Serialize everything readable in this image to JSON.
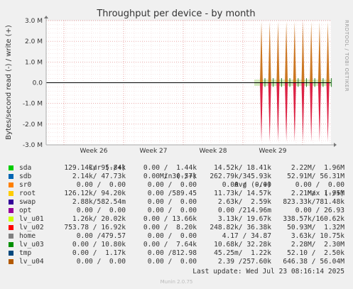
{
  "chart_data": {
    "type": "line",
    "title": "Throughput per device - by month",
    "ylabel": "Bytes/second read (-) / write (+)",
    "side_label": "RRDTOOL / TOBI OETIKER",
    "ylim": [
      -3000000,
      3000000
    ],
    "y_ticks": [
      {
        "value": 3000000,
        "label": "3.0 M"
      },
      {
        "value": 2000000,
        "label": "2.0 M"
      },
      {
        "value": 1000000,
        "label": "1.0 M"
      },
      {
        "value": 0,
        "label": "0.0"
      },
      {
        "value": -1000000,
        "label": "-1.0 M"
      },
      {
        "value": -2000000,
        "label": "-2.0 M"
      },
      {
        "value": -3000000,
        "label": "-3.0 M"
      }
    ],
    "x_ticks": [
      "Week 26",
      "Week 27",
      "Week 28",
      "Week 29"
    ],
    "spikes": {
      "write_peak": 2950000,
      "read_peak": -2850000,
      "count": 9
    },
    "colors": {
      "background": "#f0f0f0",
      "plot": "#ffffff",
      "grid": "#e8b4b4",
      "axis": "#000000",
      "write_spike": "#cc7722",
      "read_spike": "#dd2244"
    },
    "grid": true,
    "legend_placement": "bottom"
  },
  "legend": {
    "headers": {
      "cur": "Cur (-/+)",
      "min": "Min (-/+)",
      "avg": "Avg (-/+)",
      "max": "Max (-/+)"
    },
    "rows": [
      {
        "name": "sda",
        "color": "#00cc00",
        "cur": "129.14k/ 95.84k",
        "min": "0.00 /  1.44k",
        "avg": "14.52k/ 18.41k",
        "max": "2.22M/  1.96M"
      },
      {
        "name": "sdb",
        "color": "#0066b3",
        "cur": "2.14k/ 47.73k",
        "min": "0.00 / 30.57k",
        "avg": "262.79k/345.93k",
        "max": "52.91M/ 56.31M"
      },
      {
        "name": "sr0",
        "color": "#ff8000",
        "cur": "0.00 /  0.00",
        "min": "0.00 /  0.00",
        "avg": "0.00 /  0.00",
        "max": "0.00 /  0.00"
      },
      {
        "name": "root",
        "color": "#ffcc00",
        "cur": "126.12k/ 94.20k",
        "min": "0.00 /589.45",
        "avg": "11.73k/ 14.57k",
        "max": "2.21M/  1.95M"
      },
      {
        "name": "swap",
        "color": "#330099",
        "cur": "2.88k/582.54m",
        "min": "0.00 /  0.00",
        "avg": "2.63k/  2.59k",
        "max": "823.33k/781.48k"
      },
      {
        "name": "opt",
        "color": "#990099",
        "cur": "0.00 /  0.00",
        "min": "0.00 /  0.00",
        "avg": "0.00 /214.96m",
        "max": "0.00 / 26.93"
      },
      {
        "name": "lv_u01",
        "color": "#ccff00",
        "cur": "1.26k/ 20.02k",
        "min": "0.00 / 13.66k",
        "avg": "3.13k/ 19.67k",
        "max": "338.57k/160.62k"
      },
      {
        "name": "lv_u02",
        "color": "#ff0000",
        "cur": "753.78 / 16.92k",
        "min": "0.00 /  8.20k",
        "avg": "248.82k/ 36.38k",
        "max": "50.93M/  1.32M"
      },
      {
        "name": "home",
        "color": "#808080",
        "cur": "0.00 /479.57",
        "min": "0.00 /  0.00",
        "avg": "4.17 / 34.87",
        "max": "3.63k/ 10.75k"
      },
      {
        "name": "lv_u03",
        "color": "#008f00",
        "cur": "0.00 / 10.80k",
        "min": "0.00 /  7.64k",
        "avg": "10.68k/ 32.28k",
        "max": "2.28M/  2.30M"
      },
      {
        "name": "tmp",
        "color": "#00487d",
        "cur": "0.00 /  1.17k",
        "min": "0.00 /812.98",
        "avg": "45.25m/  1.22k",
        "max": "52.10 /  2.50k"
      },
      {
        "name": "lv_u04",
        "color": "#b35a00",
        "cur": "0.00 /  0.00",
        "min": "0.00 /  0.00",
        "avg": "2.39 /257.60k",
        "max": "646.38 / 56.04M"
      }
    ]
  },
  "last_update": "Last update: Wed Jul 23 08:16:14 2025",
  "footer": "Munin 2.0.75"
}
